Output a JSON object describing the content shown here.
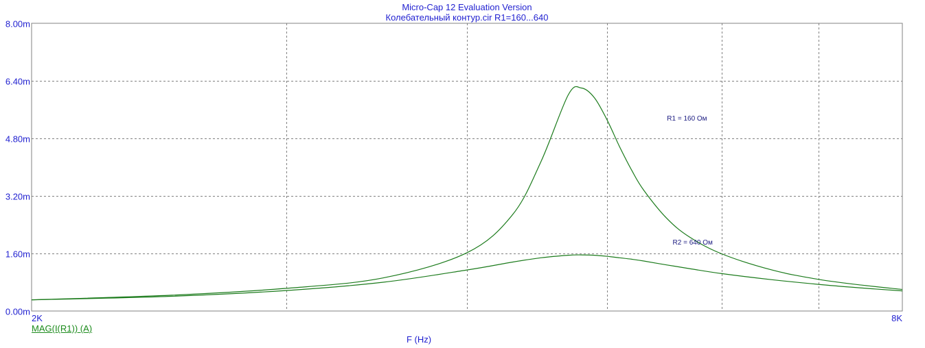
{
  "header": {
    "title": "Micro-Cap 12 Evaluation Version",
    "subtitle": "Колебательный контур.cir R1=160...640"
  },
  "legend_label": "MAG(I(R1)) (A)",
  "xlabel": "F (Hz)",
  "colors": {
    "text": "#1f1fd0",
    "curve": "#1a7a1a",
    "legend": "#1a8a1a",
    "grid": "#808080",
    "annotation": "#1a1a80"
  },
  "chart_data": {
    "type": "line",
    "title": "Micro-Cap 12 Evaluation Version",
    "subtitle": "Колебательный контур.cir R1=160...640",
    "xlabel": "F (Hz)",
    "ylabel": "",
    "xlim": [
      2000,
      8000
    ],
    "ylim": [
      0,
      0.008
    ],
    "x_scale": "log",
    "grid": true,
    "y_ticks": [
      {
        "value": 0,
        "label": "0.00m"
      },
      {
        "value": 0.0016,
        "label": "1.60m"
      },
      {
        "value": 0.0032,
        "label": "3.20m"
      },
      {
        "value": 0.0048,
        "label": "4.80m"
      },
      {
        "value": 0.0064,
        "label": "6.40m"
      },
      {
        "value": 0.008,
        "label": "8.00m"
      }
    ],
    "x_ticks": [
      {
        "value": 2000,
        "label": "2K"
      },
      {
        "value": 8000,
        "label": "8K"
      }
    ],
    "x_gridlines": [
      3000,
      4000,
      5000,
      6000,
      7000
    ],
    "series": [
      {
        "name": "R1 = 160 Ом",
        "x": [
          2000,
          2500,
          3000,
          3500,
          4000,
          4300,
          4500,
          4700,
          4800,
          4900,
          5000,
          5100,
          5200,
          5300,
          5500,
          5700,
          6000,
          6500,
          7000,
          7500,
          8000
        ],
        "y": [
          0.00031,
          0.00044,
          0.00063,
          0.00092,
          0.00162,
          0.00267,
          0.00415,
          0.00601,
          0.0062,
          0.00593,
          0.00531,
          0.00457,
          0.00391,
          0.00336,
          0.00257,
          0.00206,
          0.00159,
          0.00114,
          0.00088,
          0.00072,
          0.0006
        ]
      },
      {
        "name": "R2 = 640 Ом",
        "x": [
          2000,
          2500,
          3000,
          3500,
          4000,
          4300,
          4500,
          4700,
          4800,
          4900,
          5000,
          5100,
          5200,
          5300,
          5500,
          5700,
          6000,
          6500,
          7000,
          7500,
          8000
        ],
        "y": [
          0.00031,
          0.00041,
          0.00057,
          0.0008,
          0.00114,
          0.00136,
          0.00148,
          0.00155,
          0.00156,
          0.00155,
          0.00152,
          0.00148,
          0.00144,
          0.00139,
          0.00128,
          0.00118,
          0.00104,
          0.00087,
          0.00074,
          0.00064,
          0.00056
        ]
      }
    ],
    "annotations": [
      {
        "text": "R1 = 160 Ом",
        "x": 5500,
        "y": 0.0053
      },
      {
        "text": "R2 = 640 Ом",
        "x": 5550,
        "y": 0.00185
      }
    ]
  }
}
